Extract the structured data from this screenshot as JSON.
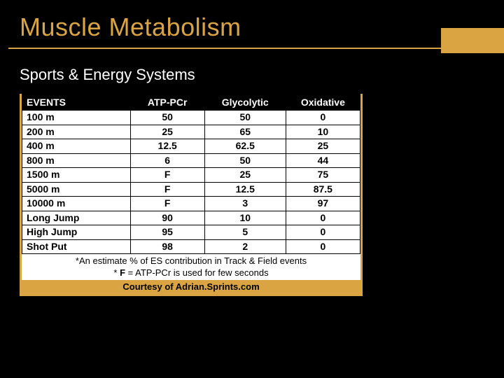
{
  "colors": {
    "background": "#000000",
    "title": "#d9a441",
    "underline": "#d9a441",
    "accent_box": "#d9a441",
    "table_border": "#d9a441",
    "header_bg": "#000000",
    "courtesy_bg": "#d9a441"
  },
  "title": "Muscle Metabolism",
  "subtitle": "Sports & Energy Systems",
  "table": {
    "columns": [
      "EVENTS",
      "ATP-PCr",
      "Glycolytic",
      "Oxidative"
    ],
    "col_widths": [
      "32%",
      "22%",
      "24%",
      "22%"
    ],
    "rows": [
      [
        "100 m",
        "50",
        "50",
        "0"
      ],
      [
        "200 m",
        "25",
        "65",
        "10"
      ],
      [
        "400 m",
        "12.5",
        "62.5",
        "25"
      ],
      [
        "800 m",
        "6",
        "50",
        "44"
      ],
      [
        "1500 m",
        "F",
        "25",
        "75"
      ],
      [
        "5000 m",
        "F",
        "12.5",
        "87.5"
      ],
      [
        "10000 m",
        "F",
        "3",
        "97"
      ],
      [
        "Long Jump",
        "90",
        "10",
        "0"
      ],
      [
        "High Jump",
        "95",
        "5",
        "0"
      ],
      [
        "Shot Put",
        "98",
        "2",
        "0"
      ]
    ]
  },
  "note_line1": "*An estimate % of ES contribution in Track & Field events",
  "note_line2_prefix": "* ",
  "note_line2_bold": "F",
  "note_line2_suffix": " = ATP-PCr  is used for few seconds",
  "courtesy": "Courtesy of Adrian.Sprints.com"
}
